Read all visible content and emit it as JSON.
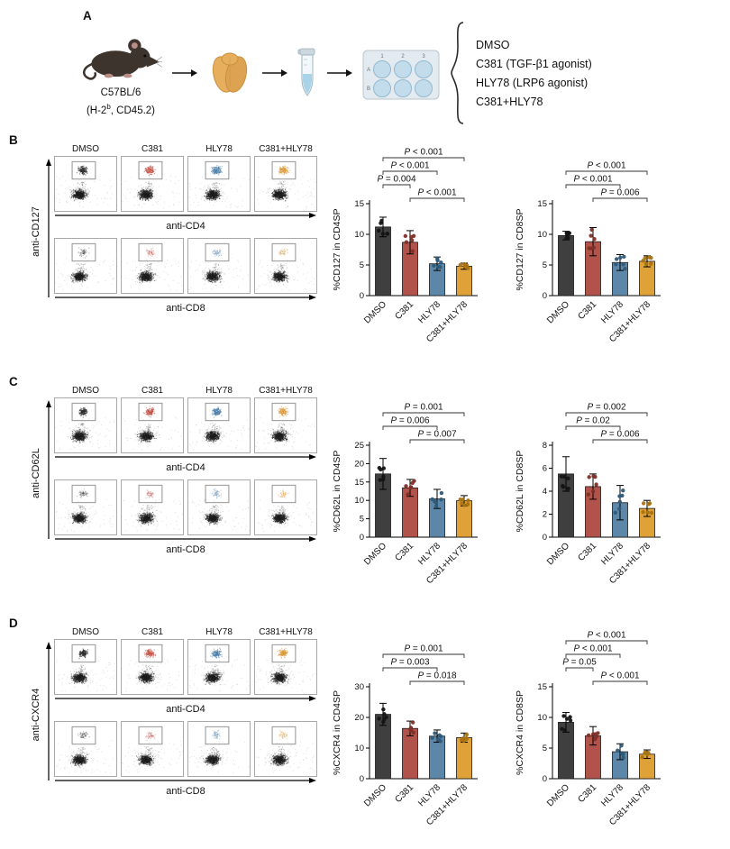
{
  "figure": {
    "background": "#ffffff"
  },
  "panelA": {
    "label": "A",
    "mouse_caption_line1": "C57BL/6",
    "mouse_caption_pre": "(H-2",
    "mouse_caption_sup": "b",
    "mouse_caption_post": ", CD45.2)",
    "treatments": [
      "DMSO",
      "C381 (TGF-β1 agonist)",
      "HLY78 (LRP6 agonist)",
      "C381+HLY78"
    ]
  },
  "groups": {
    "names": [
      "DMSO",
      "C381",
      "HLY78",
      "C381+HLY78"
    ],
    "bar_colors": [
      "#3f3f3f",
      "#b1534a",
      "#5d87a8",
      "#dfa239"
    ],
    "dot_colors": [
      "#141414",
      "#7e2f28",
      "#2e5a78",
      "#a87312"
    ],
    "flow_colors": [
      "#2b2b2b",
      "#c4554a",
      "#4d7fa8",
      "#dc9a3c"
    ]
  },
  "panels": [
    {
      "label": "B",
      "yaxis": "anti-CD127",
      "xaxis_top": "anti-CD4",
      "xaxis_bottom": "anti-CD8",
      "chart_indices": [
        0,
        1
      ]
    },
    {
      "label": "C",
      "yaxis": "anti-CD62L",
      "xaxis_top": "anti-CD4",
      "xaxis_bottom": "anti-CD8",
      "chart_indices": [
        2,
        3
      ]
    },
    {
      "label": "D",
      "yaxis": "anti-CXCR4",
      "xaxis_top": "anti-CD4",
      "xaxis_bottom": "anti-CD8",
      "chart_indices": [
        4,
        5
      ]
    }
  ],
  "chart_data": [
    {
      "type": "bar",
      "ylabel": "%CD127 in CD4SP",
      "categories": [
        "DMSO",
        "C381",
        "HLY78",
        "C381+HLY78"
      ],
      "values": [
        11.2,
        8.7,
        5.2,
        4.8
      ],
      "errors": [
        1.6,
        1.9,
        1.1,
        0.5
      ],
      "ylim": [
        0,
        15
      ],
      "yticks": [
        0,
        5,
        10,
        15
      ],
      "brackets": [
        {
          "from": 0,
          "to": 3,
          "label": "P < 0.001"
        },
        {
          "from": 0,
          "to": 2,
          "label": "P < 0.001"
        },
        {
          "from": 0,
          "to": 1,
          "label": "P = 0.004"
        },
        {
          "from": 1,
          "to": 3,
          "label": "P < 0.001"
        }
      ]
    },
    {
      "type": "bar",
      "ylabel": "%CD127 in CD8SP",
      "categories": [
        "DMSO",
        "C381",
        "HLY78",
        "C381+HLY78"
      ],
      "values": [
        9.8,
        8.8,
        5.4,
        5.6
      ],
      "errors": [
        0.7,
        2.3,
        1.3,
        0.9
      ],
      "ylim": [
        0,
        15
      ],
      "yticks": [
        0,
        5,
        10,
        15
      ],
      "brackets": [
        {
          "from": 0,
          "to": 3,
          "label": "P < 0.001"
        },
        {
          "from": 0,
          "to": 2,
          "label": "P < 0.001"
        },
        {
          "from": 1,
          "to": 3,
          "label": "P = 0.006"
        }
      ]
    },
    {
      "type": "bar",
      "ylabel": "%CD62L in CD4SP",
      "categories": [
        "DMSO",
        "C381",
        "HLY78",
        "C381+HLY78"
      ],
      "values": [
        17.2,
        13.4,
        10.4,
        9.9
      ],
      "errors": [
        4.2,
        2.3,
        2.6,
        1.4
      ],
      "ylim": [
        0,
        25
      ],
      "yticks": [
        0,
        5,
        10,
        15,
        20,
        25
      ],
      "brackets": [
        {
          "from": 0,
          "to": 3,
          "label": "P = 0.001"
        },
        {
          "from": 0,
          "to": 2,
          "label": "P = 0.006"
        },
        {
          "from": 1,
          "to": 3,
          "label": "P = 0.007"
        }
      ]
    },
    {
      "type": "bar",
      "ylabel": "%CD62L in CD8SP",
      "categories": [
        "DMSO",
        "C381",
        "HLY78",
        "C381+HLY78"
      ],
      "values": [
        5.5,
        4.4,
        3.0,
        2.5
      ],
      "errors": [
        1.5,
        1.1,
        1.5,
        0.7
      ],
      "ylim": [
        0,
        8
      ],
      "yticks": [
        0,
        2,
        4,
        6,
        8
      ],
      "brackets": [
        {
          "from": 0,
          "to": 3,
          "label": "P = 0.002"
        },
        {
          "from": 0,
          "to": 2,
          "label": "P = 0.02"
        },
        {
          "from": 1,
          "to": 3,
          "label": "P = 0.006"
        }
      ]
    },
    {
      "type": "bar",
      "ylabel": "%CXCR4 in CD4SP",
      "categories": [
        "DMSO",
        "C381",
        "HLY78",
        "C381+HLY78"
      ],
      "values": [
        21.0,
        16.4,
        13.9,
        13.4
      ],
      "errors": [
        3.6,
        2.4,
        2.0,
        1.5
      ],
      "ylim": [
        0,
        30
      ],
      "yticks": [
        0,
        10,
        20,
        30
      ],
      "brackets": [
        {
          "from": 0,
          "to": 3,
          "label": "P = 0.001"
        },
        {
          "from": 0,
          "to": 2,
          "label": "P = 0.003"
        },
        {
          "from": 1,
          "to": 3,
          "label": "P = 0.018"
        }
      ]
    },
    {
      "type": "bar",
      "ylabel": "%CXCR4 in CD8SP",
      "categories": [
        "DMSO",
        "C381",
        "HLY78",
        "C381+HLY78"
      ],
      "values": [
        9.2,
        7.0,
        4.4,
        4.0
      ],
      "errors": [
        1.6,
        1.5,
        1.3,
        0.7
      ],
      "ylim": [
        0,
        15
      ],
      "yticks": [
        0,
        5,
        10,
        15
      ],
      "brackets": [
        {
          "from": 0,
          "to": 3,
          "label": "P < 0.001"
        },
        {
          "from": 0,
          "to": 2,
          "label": "P < 0.001"
        },
        {
          "from": 0,
          "to": 1,
          "label": "P = 0.05"
        },
        {
          "from": 1,
          "to": 3,
          "label": "P < 0.001"
        }
      ]
    }
  ]
}
